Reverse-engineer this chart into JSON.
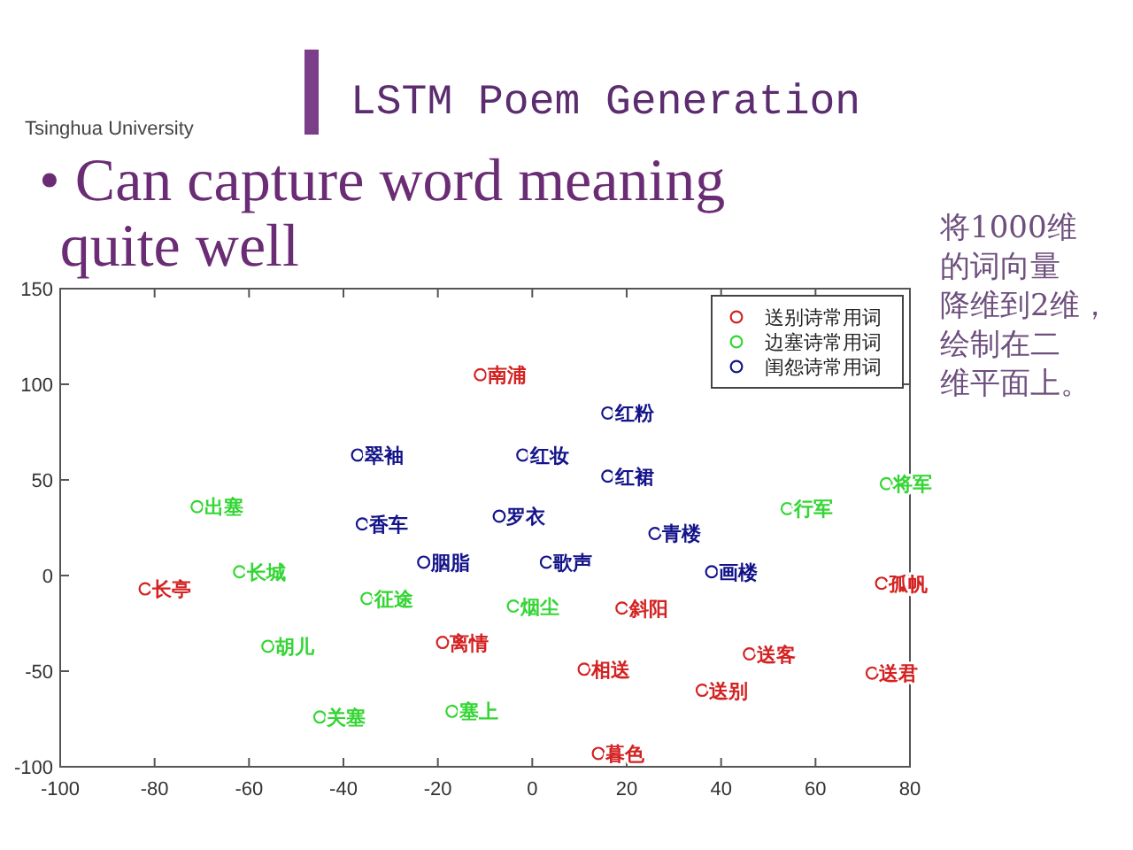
{
  "chart_data": {
    "type": "scatter",
    "title": "LSTM Poem Generation",
    "subtitle": "• Can capture word meaning quite well",
    "annotations": [
      "Tsinghua University",
      "将1000维的词向量降维到2维，绘制在二维平面上。"
    ],
    "xlim": [
      -100,
      80
    ],
    "ylim": [
      -100,
      150
    ],
    "xticks": [
      -100,
      -80,
      -60,
      -40,
      -20,
      0,
      20,
      40,
      60,
      80
    ],
    "yticks": [
      -100,
      -50,
      0,
      50,
      100,
      150
    ],
    "marker": "circle",
    "legend": "top right",
    "series": [
      {
        "name": "送别诗常用词",
        "color": "#d42222",
        "x": [
          -11,
          -82,
          -19,
          19,
          11,
          46,
          36,
          74,
          72,
          14
        ],
        "values": [
          105,
          -7,
          -35,
          -17,
          -49,
          -41,
          -60,
          -4,
          -51,
          -93
        ],
        "value_labels": [
          "南浦",
          "长亭",
          "离情",
          "斜阳",
          "相送",
          "送客",
          "送别",
          "孤帆",
          "送君",
          "暮色"
        ]
      },
      {
        "name": "边塞诗常用词",
        "color": "#33d633",
        "x": [
          -71,
          -62,
          -35,
          -4,
          -56,
          -45,
          -17,
          54,
          75
        ],
        "values": [
          36,
          2,
          -12,
          -16,
          -37,
          -74,
          -71,
          35,
          48
        ],
        "value_labels": [
          "出塞",
          "长城",
          "征途",
          "烟尘",
          "胡儿",
          "关塞",
          "塞上",
          "行军",
          "将军"
        ]
      },
      {
        "name": "闺怨诗常用词",
        "color": "#14148a",
        "x": [
          16,
          -37,
          -2,
          16,
          -36,
          -7,
          -23,
          3,
          26,
          38
        ],
        "values": [
          85,
          63,
          63,
          52,
          27,
          31,
          7,
          7,
          22,
          2
        ],
        "value_labels": [
          "红粉",
          "翠袖",
          "红妆",
          "红裙",
          "香车",
          "罗衣",
          "胭脂",
          "歌声",
          "青楼",
          "画楼"
        ]
      }
    ]
  }
}
